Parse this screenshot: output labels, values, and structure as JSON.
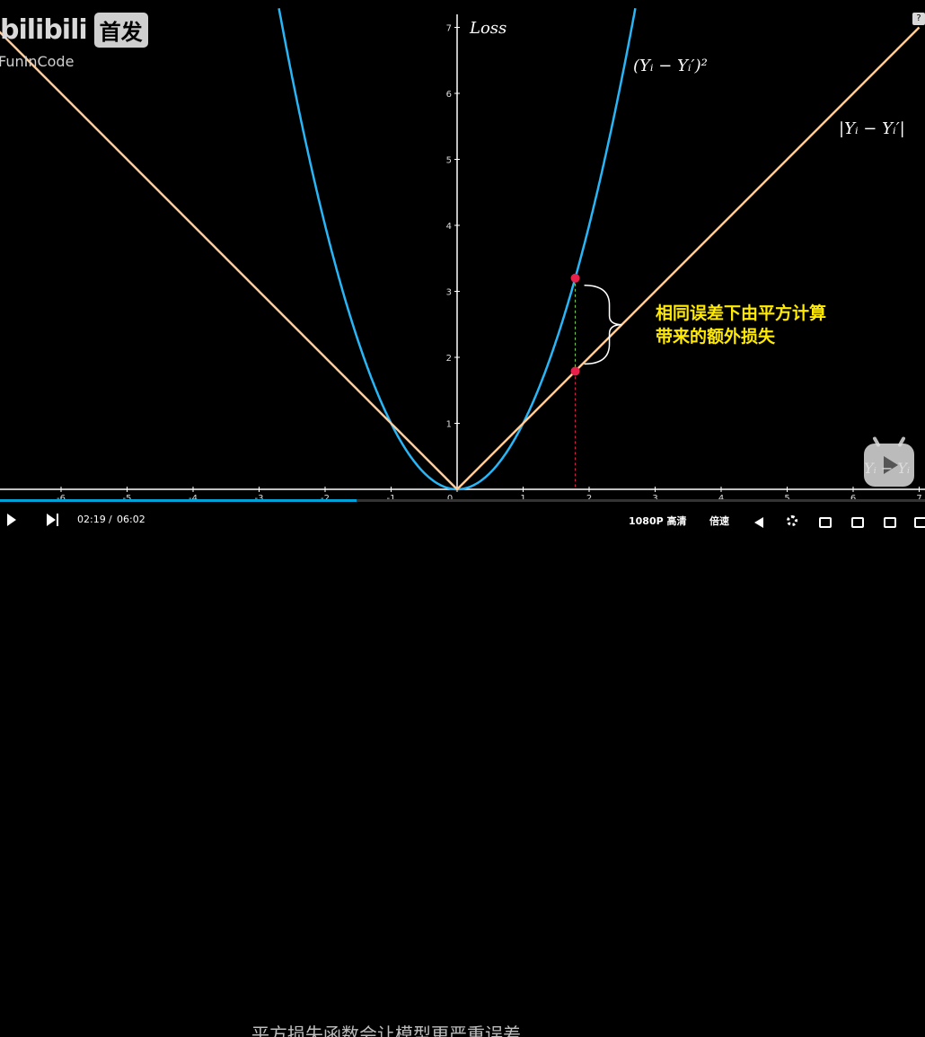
{
  "watermark": {
    "logo_text": "bilibili",
    "home_label": "首发",
    "username": "FunInCode"
  },
  "formulas": {
    "squared": "(Yᵢ − Yᵢ′)²",
    "absolute": "|Yᵢ − Yᵢ′|",
    "mascot_label": "Yᵢ − Yᵢ"
  },
  "annotation": {
    "line1": "相同误差下由平方计算",
    "line2": "带来的额外损失"
  },
  "help_icon": "?",
  "player": {
    "time_current": "02:19",
    "time_separator": "/",
    "time_total": "06:02",
    "subtitle": "平方损失函数会让模型更严重误差",
    "quality": "1080P 高清",
    "speed": "倍速",
    "progress": 0.385
  },
  "colors": {
    "squared_curve": "#29b6f6",
    "absolute_curve": "#ffcc99",
    "marker": "#e8204a",
    "axis": "#ffffff",
    "annotation": "#ffea00"
  },
  "chart_data": {
    "type": "line",
    "title": "",
    "xlabel": "",
    "ylabel": "Loss",
    "xlim": [
      -7,
      7
    ],
    "ylim": [
      0,
      7.3
    ],
    "x_ticks": [
      -6,
      -5,
      -4,
      -3,
      -2,
      -1,
      0,
      1,
      2,
      3,
      4,
      5,
      6,
      7
    ],
    "y_ticks": [
      1,
      2,
      3,
      4,
      5,
      6,
      7
    ],
    "series": [
      {
        "name": "(Y_i − Y_i′)^2",
        "function": "square",
        "color": "#29b6f6"
      },
      {
        "name": "|Y_i − Y_i′|",
        "function": "abs",
        "color": "#ffcc99"
      }
    ],
    "highlight_points": [
      {
        "x": 1.79,
        "y": 3.2,
        "series": "(Y_i − Y_i′)^2"
      },
      {
        "x": 1.79,
        "y": 1.79,
        "series": "|Y_i − Y_i′|"
      }
    ],
    "grid": false,
    "legend": "inline labels"
  }
}
